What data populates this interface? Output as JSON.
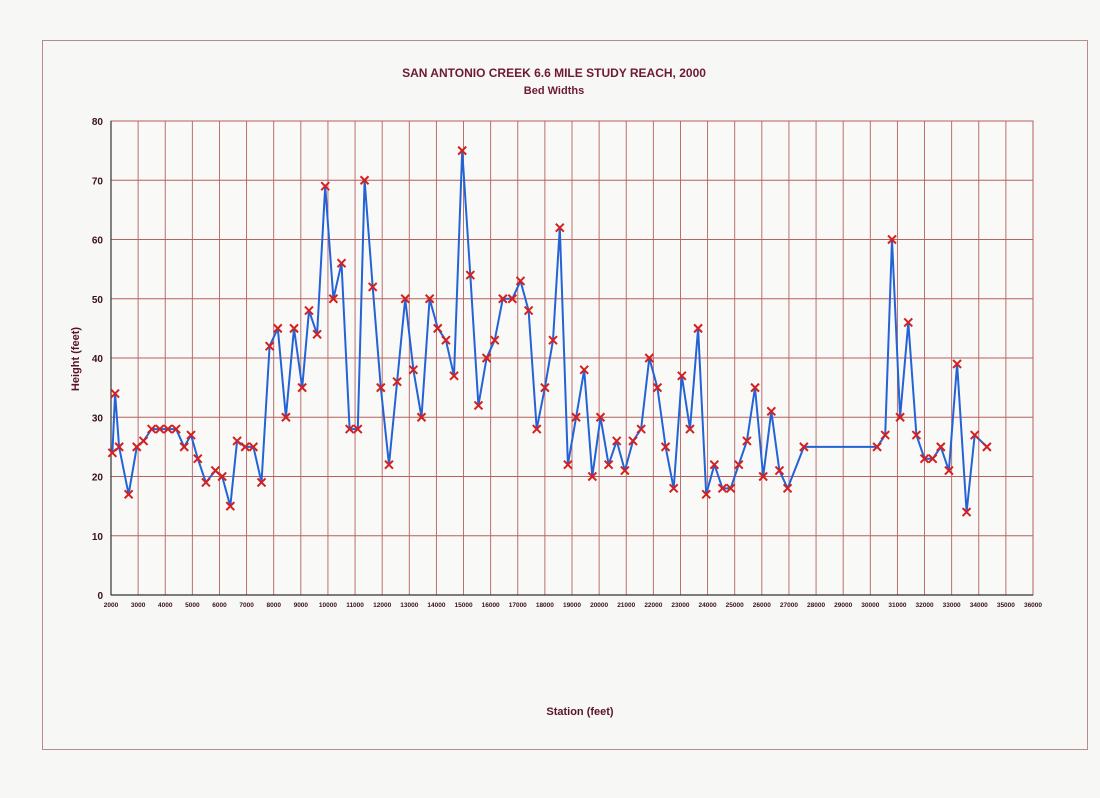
{
  "chart_data": {
    "type": "line",
    "title": "SAN ANTONIO CREEK 6.6 MILE STUDY REACH, 2000",
    "subtitle": "Bed Widths",
    "xlabel": "Station (feet)",
    "ylabel": "Height (feet)",
    "xlim": [
      2000,
      36000
    ],
    "ylim": [
      0,
      80
    ],
    "x_ticks": [
      2000,
      3000,
      4000,
      5000,
      6000,
      7000,
      8000,
      9000,
      10000,
      11000,
      12000,
      13000,
      14000,
      15000,
      16000,
      17000,
      18000,
      19000,
      20000,
      21000,
      22000,
      23000,
      24000,
      25000,
      26000,
      27000,
      28000,
      29000,
      30000,
      31000,
      32000,
      33000,
      34000,
      35000,
      36000
    ],
    "y_ticks": [
      0,
      10,
      20,
      30,
      40,
      50,
      60,
      70,
      80
    ],
    "grid": true,
    "colors": {
      "line": "#2463d6",
      "marker": "#d42020",
      "grid": "#b5615f",
      "text": "#6e1a33"
    },
    "series": [
      {
        "marker": "x",
        "points": [
          [
            2050,
            24
          ],
          [
            2150,
            34
          ],
          [
            2300,
            25
          ],
          [
            2650,
            17
          ],
          [
            2950,
            25
          ],
          [
            3200,
            26
          ],
          [
            3500,
            28
          ],
          [
            3800,
            28
          ],
          [
            4100,
            28
          ],
          [
            4400,
            28
          ],
          [
            4700,
            25
          ],
          [
            4950,
            27
          ],
          [
            5200,
            23
          ],
          [
            5500,
            19
          ],
          [
            5850,
            21
          ],
          [
            6100,
            20
          ],
          [
            6400,
            15
          ],
          [
            6650,
            26
          ],
          [
            6950,
            25
          ],
          [
            7250,
            25
          ],
          [
            7550,
            19
          ],
          [
            7850,
            42
          ],
          [
            8150,
            45
          ],
          [
            8450,
            30
          ],
          [
            8750,
            45
          ],
          [
            9050,
            35
          ],
          [
            9300,
            48
          ],
          [
            9600,
            44
          ],
          [
            9900,
            69
          ],
          [
            10200,
            50
          ],
          [
            10500,
            56
          ],
          [
            10800,
            28
          ],
          [
            11100,
            28
          ],
          [
            11350,
            70
          ],
          [
            11650,
            52
          ],
          [
            11950,
            35
          ],
          [
            12250,
            22
          ],
          [
            12550,
            36
          ],
          [
            12850,
            50
          ],
          [
            13150,
            38
          ],
          [
            13450,
            30
          ],
          [
            13750,
            50
          ],
          [
            14050,
            45
          ],
          [
            14350,
            43
          ],
          [
            14650,
            37
          ],
          [
            14950,
            75
          ],
          [
            15250,
            54
          ],
          [
            15550,
            32
          ],
          [
            15850,
            40
          ],
          [
            16150,
            43
          ],
          [
            16450,
            50
          ],
          [
            16800,
            50
          ],
          [
            17100,
            53
          ],
          [
            17400,
            48
          ],
          [
            17700,
            28
          ],
          [
            18000,
            35
          ],
          [
            18300,
            43
          ],
          [
            18550,
            62
          ],
          [
            18850,
            22
          ],
          [
            19150,
            30
          ],
          [
            19450,
            38
          ],
          [
            19750,
            20
          ],
          [
            20050,
            30
          ],
          [
            20350,
            22
          ],
          [
            20650,
            26
          ],
          [
            20950,
            21
          ],
          [
            21250,
            26
          ],
          [
            21550,
            28
          ],
          [
            21850,
            40
          ],
          [
            22150,
            35
          ],
          [
            22450,
            25
          ],
          [
            22750,
            18
          ],
          [
            23050,
            37
          ],
          [
            23350,
            28
          ],
          [
            23650,
            45
          ],
          [
            23950,
            17
          ],
          [
            24250,
            22
          ],
          [
            24550,
            18
          ],
          [
            24850,
            18
          ],
          [
            25150,
            22
          ],
          [
            25450,
            26
          ],
          [
            25750,
            35
          ],
          [
            26050,
            20
          ],
          [
            26350,
            31
          ],
          [
            26650,
            21
          ],
          [
            26950,
            18
          ],
          [
            27550,
            25
          ],
          [
            30250,
            25
          ],
          [
            30550,
            27
          ],
          [
            30800,
            60
          ],
          [
            31100,
            30
          ],
          [
            31400,
            46
          ],
          [
            31700,
            27
          ],
          [
            32000,
            23
          ],
          [
            32300,
            23
          ],
          [
            32600,
            25
          ],
          [
            32900,
            21
          ],
          [
            33200,
            39
          ],
          [
            33550,
            14
          ],
          [
            33850,
            27
          ],
          [
            34300,
            25
          ]
        ]
      }
    ]
  }
}
